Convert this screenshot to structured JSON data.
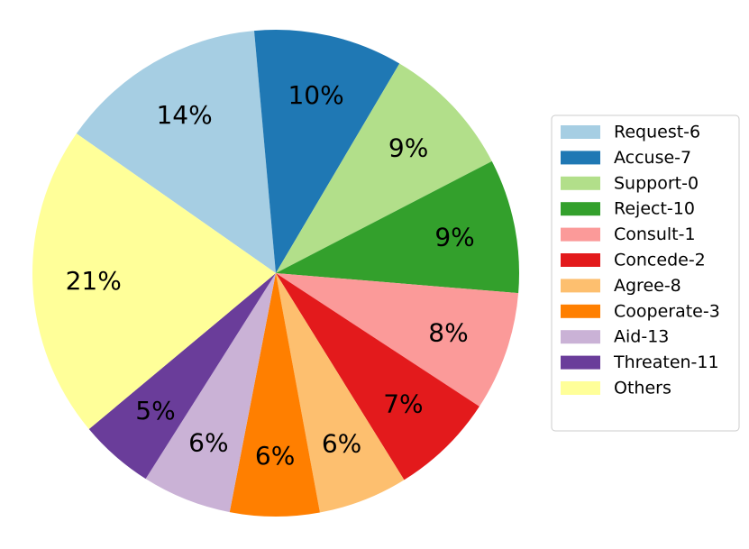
{
  "chart_data": {
    "type": "pie",
    "start_angle_deg": 145,
    "direction": "clockwise",
    "legend_position": "right",
    "slices": [
      {
        "label": "Request-6",
        "value": 14,
        "label_text": "14%",
        "color": "#a6cee3"
      },
      {
        "label": "Accuse-7",
        "value": 10,
        "label_text": "10%",
        "color": "#1f78b4"
      },
      {
        "label": "Support-0",
        "value": 9,
        "label_text": "9%",
        "color": "#b2df8a"
      },
      {
        "label": "Reject-10",
        "value": 9,
        "label_text": "9%",
        "color": "#33a02c"
      },
      {
        "label": "Consult-1",
        "value": 8,
        "label_text": "8%",
        "color": "#fb9a99"
      },
      {
        "label": "Concede-2",
        "value": 7,
        "label_text": "7%",
        "color": "#e31a1c"
      },
      {
        "label": "Agree-8",
        "value": 6,
        "label_text": "6%",
        "color": "#fdbf6f"
      },
      {
        "label": "Cooperate-3",
        "value": 6,
        "label_text": "6%",
        "color": "#ff7f00"
      },
      {
        "label": "Aid-13",
        "value": 6,
        "label_text": "6%",
        "color": "#cab2d6"
      },
      {
        "label": "Threaten-11",
        "value": 5,
        "label_text": "5%",
        "color": "#6a3d9a"
      },
      {
        "label": "Others",
        "value": 21,
        "label_text": "21%",
        "color": "#ffff99"
      }
    ]
  }
}
